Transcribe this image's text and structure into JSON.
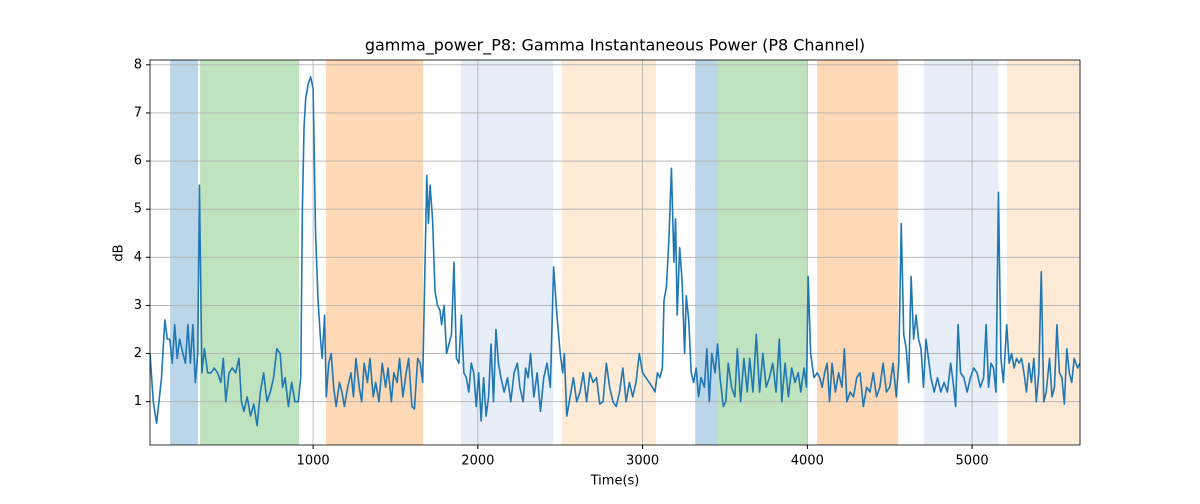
{
  "chart_data": {
    "type": "line",
    "title": "gamma_power_P8: Gamma Instantaneous Power (P8 Channel)",
    "xlabel": "Time(s)",
    "ylabel": "dB",
    "color": "#1f77b4",
    "xlim": [
      10,
      5655
    ],
    "ylim": [
      0.1,
      8.1
    ],
    "xticks": [
      1000,
      2000,
      3000,
      4000,
      5000
    ],
    "yticks": [
      1,
      2,
      3,
      4,
      5,
      6,
      7,
      8
    ],
    "grid": true,
    "spans": [
      {
        "start": 132,
        "end": 302,
        "color": "#1f77b4",
        "alpha": 0.3
      },
      {
        "start": 314,
        "end": 915,
        "color": "#2ca02c",
        "alpha": 0.3
      },
      {
        "start": 1079,
        "end": 1668,
        "color": "#ff7f0e",
        "alpha": 0.3
      },
      {
        "start": 1898,
        "end": 2457,
        "color": "#aec7e8",
        "alpha": 0.3
      },
      {
        "start": 2511,
        "end": 3082,
        "color": "#ffbb78",
        "alpha": 0.3
      },
      {
        "start": 3319,
        "end": 3458,
        "color": "#1f77b4",
        "alpha": 0.3
      },
      {
        "start": 3458,
        "end": 3998,
        "color": "#2ca02c",
        "alpha": 0.3
      },
      {
        "start": 4059,
        "end": 4551,
        "color": "#ff7f0e",
        "alpha": 0.3
      },
      {
        "start": 4709,
        "end": 5158,
        "color": "#aec7e8",
        "alpha": 0.3
      },
      {
        "start": 5212,
        "end": 5655,
        "color": "#ffbb78",
        "alpha": 0.3
      }
    ],
    "x": [
      10,
      30,
      50,
      80,
      100,
      115,
      130,
      145,
      160,
      175,
      190,
      210,
      225,
      240,
      255,
      270,
      285,
      300,
      310,
      325,
      340,
      360,
      380,
      400,
      420,
      440,
      455,
      470,
      490,
      510,
      530,
      550,
      565,
      580,
      600,
      620,
      640,
      660,
      680,
      700,
      720,
      740,
      760,
      780,
      800,
      815,
      830,
      850,
      870,
      890,
      910,
      925,
      935,
      945,
      955,
      970,
      985,
      1000,
      1015,
      1030,
      1045,
      1055,
      1070,
      1080,
      1095,
      1110,
      1125,
      1140,
      1160,
      1175,
      1190,
      1210,
      1230,
      1245,
      1260,
      1280,
      1295,
      1310,
      1330,
      1345,
      1365,
      1380,
      1400,
      1420,
      1440,
      1455,
      1475,
      1490,
      1510,
      1525,
      1545,
      1565,
      1580,
      1600,
      1615,
      1635,
      1650,
      1665,
      1690,
      1700,
      1710,
      1725,
      1740,
      1755,
      1770,
      1780,
      1795,
      1810,
      1825,
      1840,
      1855,
      1870,
      1885,
      1900,
      1915,
      1930,
      1945,
      1960,
      1975,
      1990,
      2005,
      2020,
      2035,
      2050,
      2065,
      2080,
      2095,
      2110,
      2125,
      2140,
      2160,
      2180,
      2200,
      2220,
      2240,
      2255,
      2275,
      2290,
      2305,
      2320,
      2340,
      2360,
      2380,
      2400,
      2420,
      2440,
      2460,
      2480,
      2500,
      2515,
      2525,
      2540,
      2560,
      2580,
      2600,
      2620,
      2640,
      2660,
      2680,
      2700,
      2720,
      2740,
      2760,
      2780,
      2800,
      2820,
      2840,
      2860,
      2880,
      2900,
      2920,
      2940,
      2960,
      2980,
      3000,
      3020,
      3040,
      3060,
      3075,
      3090,
      3105,
      3120,
      3130,
      3145,
      3160,
      3175,
      3190,
      3200,
      3210,
      3225,
      3240,
      3255,
      3265,
      3280,
      3295,
      3310,
      3325,
      3340,
      3355,
      3375,
      3390,
      3405,
      3420,
      3440,
      3455,
      3470,
      3490,
      3505,
      3520,
      3540,
      3560,
      3575,
      3595,
      3615,
      3635,
      3650,
      3670,
      3690,
      3710,
      3730,
      3750,
      3770,
      3790,
      3810,
      3830,
      3845,
      3865,
      3885,
      3905,
      3925,
      3945,
      3960,
      3980,
      3995,
      4005,
      4020,
      4040,
      4060,
      4075,
      4090,
      4105,
      4120,
      4135,
      4150,
      4170,
      4190,
      4210,
      4225,
      4240,
      4260,
      4280,
      4300,
      4320,
      4340,
      4360,
      4380,
      4400,
      4420,
      4440,
      4460,
      4480,
      4500,
      4520,
      4540,
      4555,
      4570,
      4585,
      4600,
      4615,
      4630,
      4645,
      4660,
      4675,
      4690,
      4705,
      4720,
      4735,
      4750,
      4770,
      4790,
      4810,
      4830,
      4850,
      4870,
      4885,
      4900,
      4915,
      4930,
      4950,
      4970,
      4990,
      5010,
      5030,
      5050,
      5070,
      5085,
      5100,
      5115,
      5130,
      5145,
      5160,
      5175,
      5190,
      5210,
      5225,
      5240,
      5255,
      5270,
      5285,
      5300,
      5315,
      5330,
      5345,
      5360,
      5375,
      5390,
      5405,
      5420,
      5435,
      5450,
      5470,
      5485,
      5500,
      5515,
      5530,
      5545,
      5560,
      5575,
      5590,
      5605,
      5620,
      5640,
      5655
    ],
    "values": [
      2.0,
      1.0,
      0.55,
      1.5,
      2.7,
      2.3,
      2.3,
      1.8,
      2.6,
      1.9,
      2.3,
      2.0,
      1.8,
      2.6,
      1.8,
      2.6,
      1.4,
      2.0,
      5.5,
      1.6,
      2.1,
      1.6,
      1.6,
      1.7,
      1.6,
      1.4,
      1.9,
      1.0,
      1.6,
      1.7,
      1.6,
      1.9,
      1.0,
      0.8,
      1.1,
      0.7,
      0.95,
      0.5,
      1.2,
      1.6,
      1.0,
      1.2,
      1.5,
      2.1,
      2.0,
      1.3,
      1.5,
      0.9,
      1.4,
      1.0,
      1.0,
      1.5,
      5.0,
      6.7,
      7.3,
      7.6,
      7.75,
      7.5,
      4.5,
      3.1,
      2.3,
      1.9,
      2.8,
      1.1,
      1.8,
      2.0,
      1.3,
      0.9,
      1.4,
      1.2,
      0.9,
      1.3,
      1.6,
      1.1,
      1.9,
      1.3,
      1.0,
      1.8,
      1.4,
      1.9,
      1.1,
      1.4,
      1.0,
      1.8,
      1.3,
      1.7,
      1.0,
      1.6,
      1.4,
      1.9,
      1.1,
      1.6,
      1.9,
      0.9,
      0.85,
      1.9,
      1.8,
      1.4,
      5.7,
      4.7,
      5.5,
      4.8,
      3.3,
      3.0,
      2.9,
      2.6,
      3.0,
      2.0,
      2.2,
      2.4,
      3.9,
      1.9,
      1.8,
      2.8,
      1.6,
      1.5,
      1.2,
      1.8,
      1.6,
      0.9,
      1.6,
      0.6,
      1.5,
      0.7,
      1.1,
      2.2,
      1.0,
      2.5,
      1.8,
      1.5,
      1.2,
      1.5,
      1.0,
      1.6,
      1.8,
      1.3,
      1.0,
      1.7,
      1.5,
      2.0,
      1.1,
      1.6,
      0.8,
      1.5,
      1.8,
      1.3,
      3.8,
      2.8,
      2.0,
      1.6,
      2.0,
      0.7,
      1.1,
      1.5,
      1.0,
      1.2,
      1.6,
      1.0,
      1.6,
      1.4,
      1.5,
      0.95,
      1.0,
      1.8,
      1.3,
      1.0,
      0.9,
      1.2,
      1.7,
      1.0,
      1.4,
      1.1,
      1.4,
      2.0,
      1.6,
      1.5,
      1.4,
      1.3,
      1.2,
      1.6,
      1.5,
      1.7,
      3.1,
      3.4,
      4.4,
      5.85,
      3.9,
      4.8,
      2.8,
      4.2,
      3.5,
      2.0,
      3.2,
      2.7,
      1.6,
      1.4,
      1.7,
      1.1,
      1.5,
      1.3,
      2.1,
      1.0,
      2.0,
      1.6,
      2.2,
      1.5,
      0.9,
      1.0,
      1.8,
      1.3,
      1.1,
      2.1,
      1.0,
      1.9,
      1.2,
      1.9,
      1.2,
      2.4,
      1.2,
      2.0,
      1.3,
      1.5,
      1.8,
      1.2,
      2.3,
      1.0,
      1.8,
      1.1,
      1.7,
      1.4,
      1.6,
      1.2,
      1.7,
      1.3,
      3.6,
      2.0,
      1.5,
      1.6,
      1.5,
      1.3,
      1.6,
      1.8,
      1.0,
      1.8,
      1.2,
      1.6,
      1.3,
      2.1,
      1.0,
      1.2,
      1.1,
      1.5,
      1.6,
      0.9,
      1.3,
      1.2,
      1.6,
      1.1,
      1.3,
      1.8,
      1.2,
      1.3,
      1.8,
      1.1,
      1.8,
      4.7,
      2.4,
      2.1,
      1.4,
      3.6,
      2.3,
      2.8,
      2.3,
      2.1,
      1.3,
      2.3,
      1.9,
      1.5,
      1.2,
      1.5,
      1.2,
      1.4,
      1.2,
      1.8,
      1.4,
      0.9,
      2.6,
      1.6,
      1.5,
      1.2,
      1.5,
      1.7,
      1.6,
      1.3,
      1.5,
      2.6,
      1.3,
      1.8,
      1.7,
      1.2,
      5.35,
      1.9,
      1.4,
      2.6,
      1.8,
      2.0,
      1.7,
      1.9,
      1.8,
      1.9,
      1.6,
      1.2,
      1.8,
      1.4,
      1.9,
      1.0,
      1.6,
      3.7,
      1.0,
      1.2,
      1.9,
      1.1,
      1.3,
      2.6,
      1.6,
      1.5,
      0.95,
      2.1,
      1.6,
      1.4,
      1.9,
      1.7,
      1.8
    ]
  }
}
